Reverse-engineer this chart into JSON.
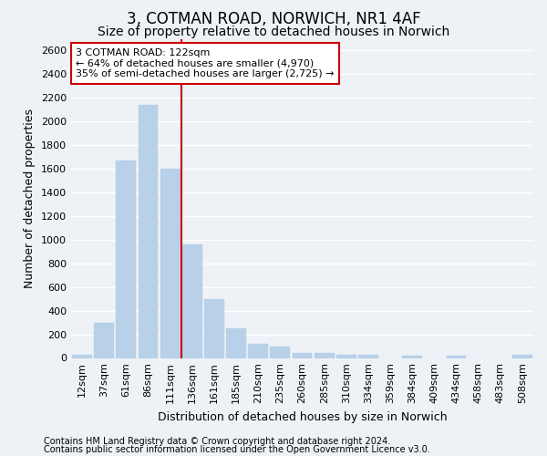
{
  "title1": "3, COTMAN ROAD, NORWICH, NR1 4AF",
  "title2": "Size of property relative to detached houses in Norwich",
  "xlabel": "Distribution of detached houses by size in Norwich",
  "ylabel": "Number of detached properties",
  "bar_categories": [
    "12sqm",
    "37sqm",
    "61sqm",
    "86sqm",
    "111sqm",
    "136sqm",
    "161sqm",
    "185sqm",
    "210sqm",
    "235sqm",
    "260sqm",
    "285sqm",
    "310sqm",
    "334sqm",
    "359sqm",
    "384sqm",
    "409sqm",
    "434sqm",
    "458sqm",
    "483sqm",
    "508sqm"
  ],
  "bar_values": [
    25,
    295,
    1670,
    2140,
    1600,
    960,
    500,
    250,
    120,
    95,
    40,
    40,
    25,
    25,
    0,
    20,
    0,
    20,
    0,
    0,
    25
  ],
  "bar_color": "#b8d0e8",
  "bar_edge_color": "#b8d0e8",
  "vline_color": "#cc0000",
  "annotation_line1": "3 COTMAN ROAD: 122sqm",
  "annotation_line2": "← 64% of detached houses are smaller (4,970)",
  "annotation_line3": "35% of semi-detached houses are larger (2,725) →",
  "annotation_box_color": "white",
  "annotation_box_edge": "#cc0000",
  "ylim": [
    0,
    2700
  ],
  "yticks": [
    0,
    200,
    400,
    600,
    800,
    1000,
    1200,
    1400,
    1600,
    1800,
    2000,
    2200,
    2400,
    2600
  ],
  "footnote1": "Contains HM Land Registry data © Crown copyright and database right 2024.",
  "footnote2": "Contains public sector information licensed under the Open Government Licence v3.0.",
  "bg_color": "#eef2f7",
  "grid_color": "#ffffff",
  "title1_fontsize": 12,
  "title2_fontsize": 10,
  "axis_label_fontsize": 9,
  "tick_fontsize": 8,
  "footnote_fontsize": 7
}
